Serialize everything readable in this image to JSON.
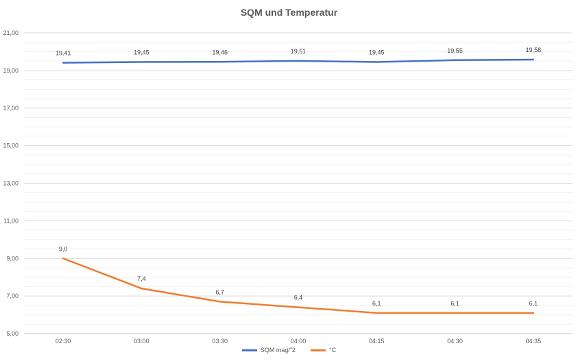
{
  "chart_data": {
    "type": "line",
    "title": "SQM und Temperatur",
    "categories": [
      "02:30",
      "03:00",
      "03:30",
      "04:00",
      "04:15",
      "04:30",
      "04:35"
    ],
    "y_ticks": [
      "5,00",
      "7,00",
      "9,00",
      "11,00",
      "13,00",
      "15,00",
      "17,00",
      "19,00",
      "21,00"
    ],
    "ylim": [
      5,
      21
    ],
    "grid": true,
    "legend": "bottom",
    "series": [
      {
        "name": "SQM mag/\"2",
        "color": "#4472C4",
        "values": [
          19.41,
          19.45,
          19.46,
          19.51,
          19.45,
          19.55,
          19.58
        ],
        "labels": [
          "19,41",
          "19,45",
          "19,46",
          "19,51",
          "19,45",
          "19,55",
          "19,58"
        ]
      },
      {
        "name": "°C",
        "color": "#ED7D31",
        "values": [
          9.0,
          7.4,
          6.7,
          6.4,
          6.1,
          6.1,
          6.1
        ],
        "labels": [
          "9,0",
          "7,4",
          "6,7",
          "6,4",
          "6,1",
          "6,1",
          "6,1"
        ]
      }
    ]
  }
}
